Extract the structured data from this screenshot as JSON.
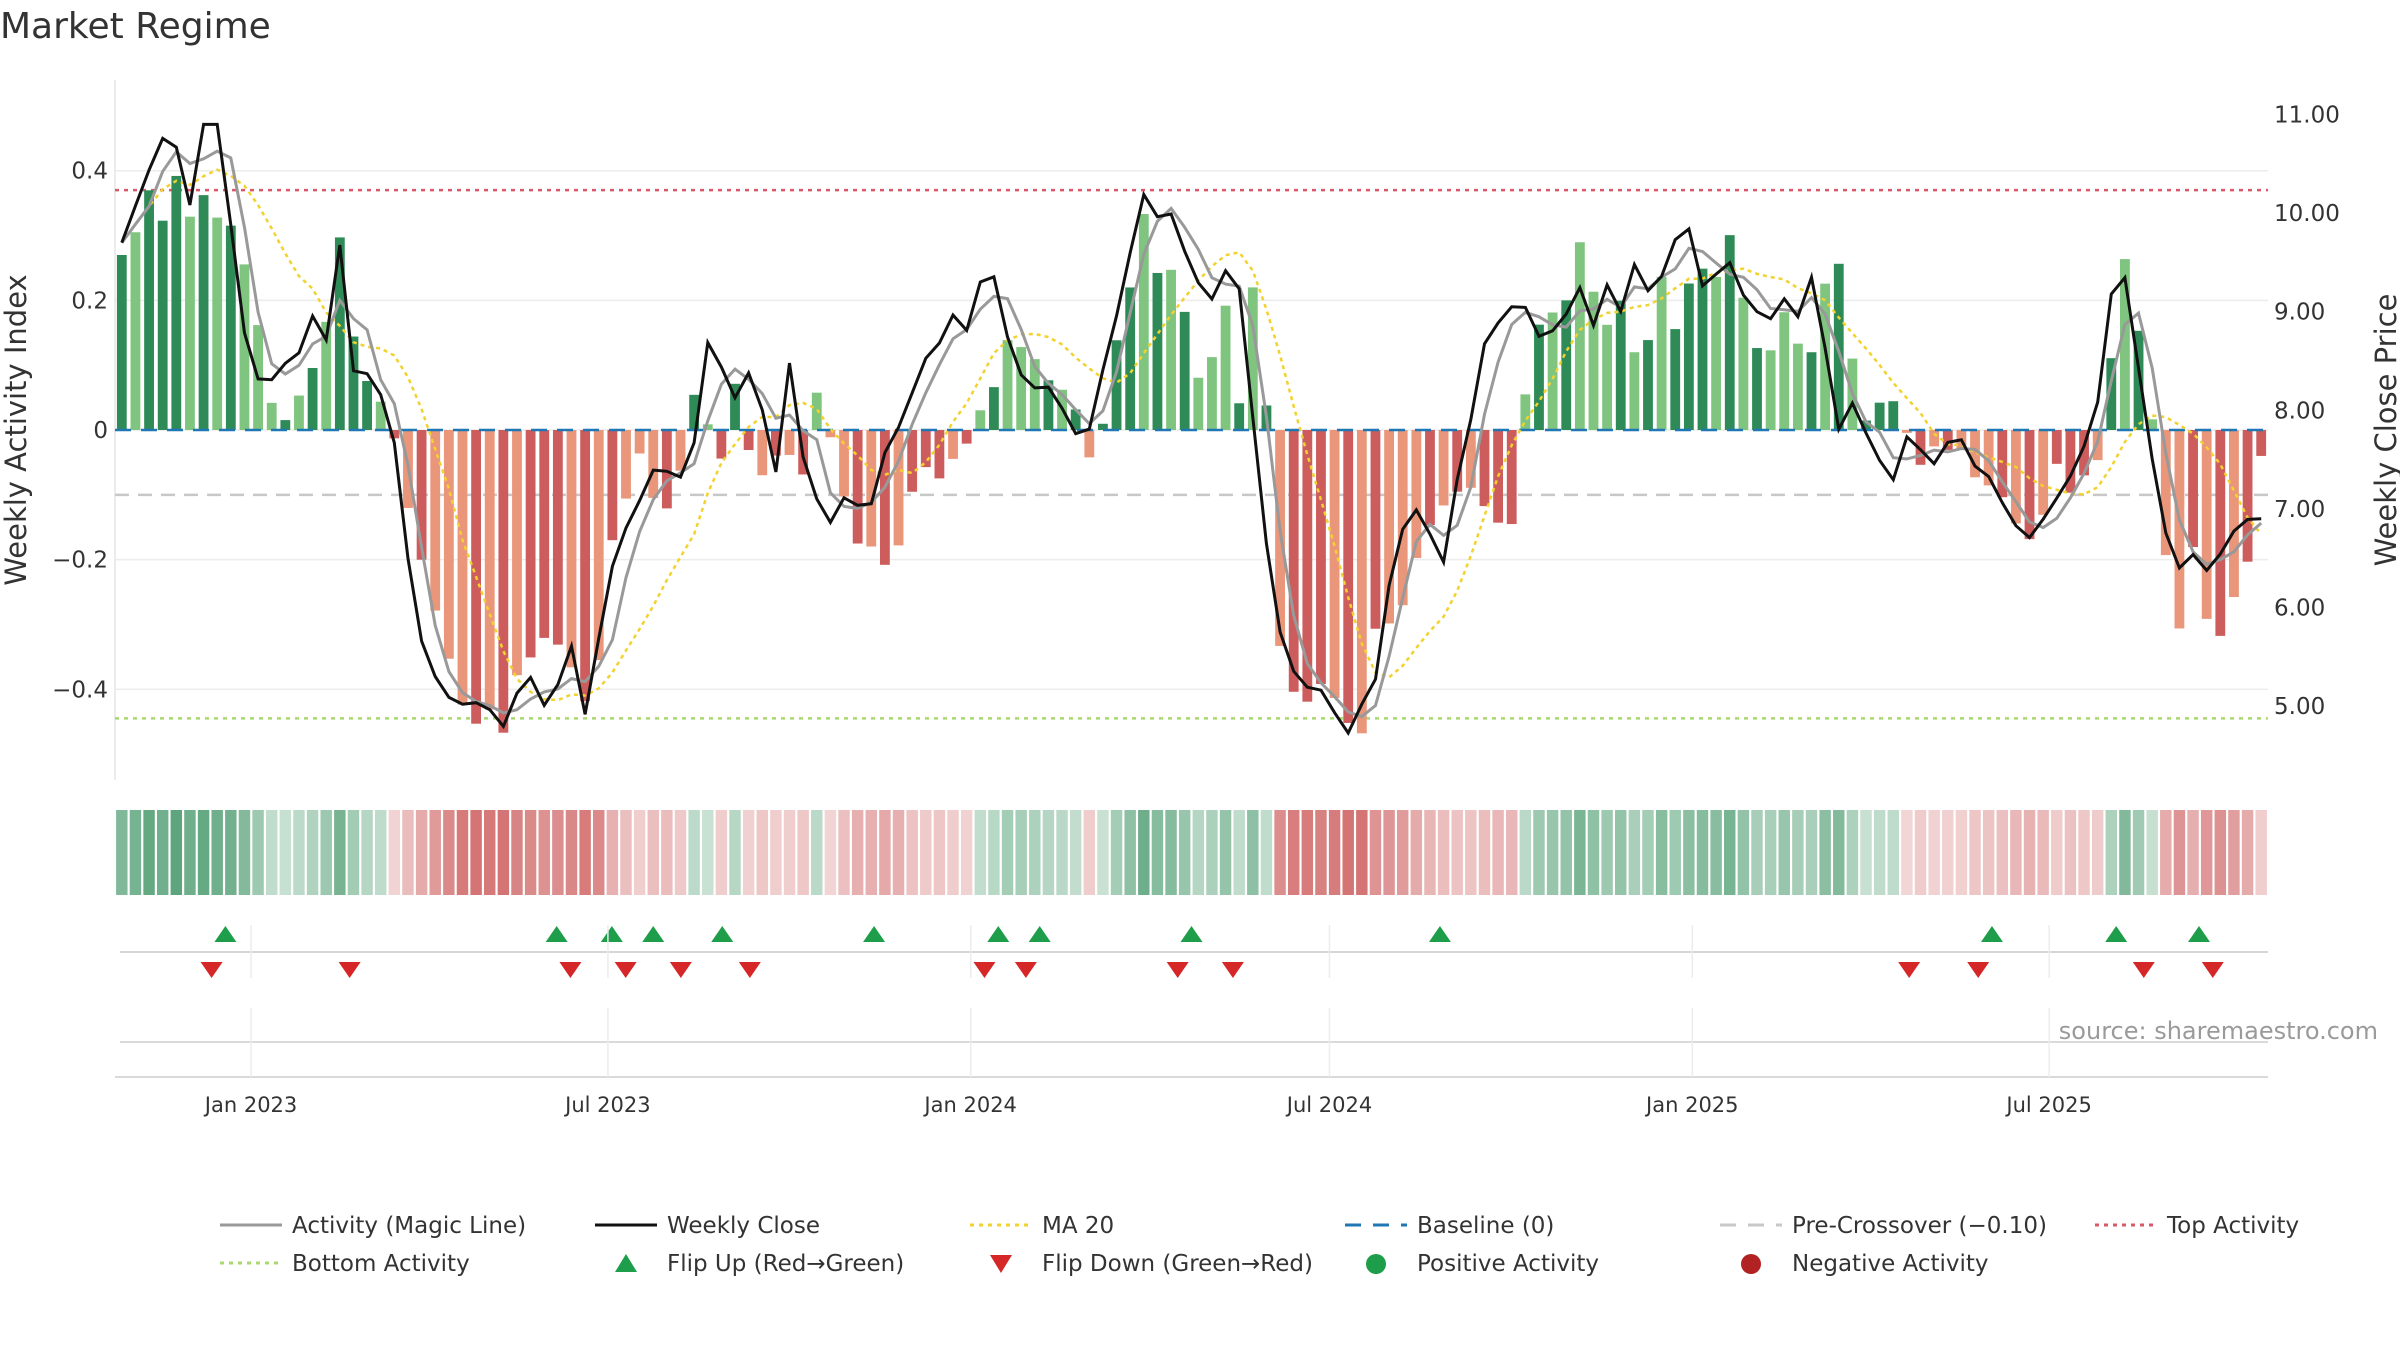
{
  "title": "Market Regime",
  "source": "source: sharemaestro.com",
  "colors": {
    "strong_green": "#2e8b57",
    "light_green": "#7fc47f",
    "strong_red": "#cd5c5c",
    "light_red": "#e9967a",
    "magic_line": "#999999",
    "weekly_close": "#111111",
    "ma20": "#f2d22e",
    "baseline": "#1f77b4",
    "pre_crossover": "#c8c8c8",
    "top_activity": "#d9596a",
    "bottom_activity": "#a8d86e",
    "flip_up": "#1e9e4a",
    "flip_down": "#d62728",
    "positive_activity": "#1e9e4a",
    "negative_activity": "#b22222"
  },
  "chart_data": {
    "type": "bar",
    "weeks_count": 158,
    "x_start": "2022-10-24",
    "x_end": "2025-10-20",
    "x_ticks": [
      "Jan 2023",
      "Jul 2023",
      "Jan 2024",
      "Jul 2024",
      "Jan 2025",
      "Jul 2025"
    ],
    "x_tick_dates": [
      "2023-01-01",
      "2023-07-01",
      "2024-01-01",
      "2024-07-01",
      "2025-01-01",
      "2025-07-01"
    ],
    "ylabel": "Weekly Activity Index",
    "y2label": "Weekly Close Price",
    "ylim": [
      -0.54,
      0.54
    ],
    "y2lim": [
      4.25,
      11.35
    ],
    "y_ticks": [
      0.4,
      0.2,
      0,
      -0.2,
      -0.4
    ],
    "y_tick_labels": [
      "0.4",
      "0.2",
      "0",
      "−0.2",
      "−0.4"
    ],
    "y2_ticks": [
      11.0,
      10.0,
      9.0,
      8.0,
      7.0,
      6.0,
      5.0
    ],
    "y2_tick_labels": [
      "11.00",
      "10.00",
      "9.00",
      "8.00",
      "7.00",
      "6.00",
      "5.00"
    ],
    "top_activity": 0.37,
    "bottom_activity": -0.445,
    "pre_crossover": -0.1,
    "baseline": 0,
    "activity_anchors": [
      [
        0,
        0.27
      ],
      [
        1,
        0.3
      ],
      [
        2,
        0.38
      ],
      [
        3,
        0.3
      ],
      [
        4,
        0.42
      ],
      [
        5,
        0.31
      ],
      [
        6,
        0.37
      ],
      [
        7,
        0.35
      ],
      [
        8,
        0.3
      ],
      [
        9,
        0.33
      ],
      [
        10,
        0.2
      ],
      [
        11,
        0.14
      ],
      [
        12,
        0.0
      ],
      [
        13,
        0.02
      ],
      [
        14,
        0.06
      ],
      [
        15,
        0.1
      ],
      [
        16,
        0.17
      ],
      [
        17,
        0.3
      ],
      [
        18,
        0.15
      ],
      [
        19,
        0.08
      ],
      [
        20,
        0.05
      ],
      [
        21,
        0.02
      ],
      [
        22,
        -0.1
      ],
      [
        23,
        -0.16
      ],
      [
        24,
        -0.26
      ],
      [
        25,
        -0.3
      ],
      [
        26,
        -0.4
      ],
      [
        27,
        -0.44
      ],
      [
        28,
        -0.46
      ],
      [
        29,
        -0.42
      ],
      [
        30,
        -0.48
      ],
      [
        31,
        -0.36
      ],
      [
        32,
        -0.35
      ],
      [
        33,
        -0.32
      ],
      [
        34,
        -0.33
      ],
      [
        35,
        -0.36
      ],
      [
        36,
        -0.42
      ],
      [
        37,
        -0.41
      ],
      [
        38,
        -0.17
      ],
      [
        39,
        -0.17
      ],
      [
        40,
        0.01
      ],
      [
        41,
        -0.1
      ],
      [
        42,
        -0.11
      ],
      [
        43,
        -0.13
      ],
      [
        44,
        -0.02
      ],
      [
        45,
        0.09
      ],
      [
        46,
        -0.02
      ],
      [
        47,
        -0.05
      ],
      [
        48,
        0.09
      ],
      [
        49,
        -0.04
      ],
      [
        50,
        -0.07
      ],
      [
        51,
        -0.04
      ],
      [
        52,
        -0.03
      ],
      [
        53,
        -0.1
      ],
      [
        54,
        0.07
      ],
      [
        55,
        0.02
      ],
      [
        56,
        -0.08
      ],
      [
        57,
        -0.14
      ],
      [
        58,
        -0.22
      ],
      [
        59,
        -0.14
      ],
      [
        60,
        -0.26
      ],
      [
        61,
        -0.13
      ],
      [
        62,
        -0.08
      ],
      [
        63,
        -0.05
      ],
      [
        64,
        -0.08
      ],
      [
        65,
        -0.04
      ],
      [
        66,
        -0.02
      ],
      [
        67,
        0.03
      ],
      [
        68,
        0.06
      ],
      [
        69,
        0.14
      ],
      [
        70,
        0.13
      ],
      [
        71,
        0.12
      ],
      [
        72,
        0.08
      ],
      [
        73,
        0.07
      ],
      [
        74,
        0.05
      ],
      [
        75,
        0.01
      ],
      [
        76,
        -0.09
      ],
      [
        77,
        0.08
      ],
      [
        78,
        0.17
      ],
      [
        79,
        0.24
      ],
      [
        80,
        0.36
      ],
      [
        81,
        0.22
      ],
      [
        82,
        0.25
      ],
      [
        83,
        0.18
      ],
      [
        84,
        0.08
      ],
      [
        85,
        0.1
      ],
      [
        86,
        0.23
      ],
      [
        87,
        -0.01
      ],
      [
        88,
        0.22
      ],
      [
        89,
        0.22
      ],
      [
        90,
        -0.3
      ],
      [
        91,
        -0.38
      ],
      [
        92,
        -0.43
      ],
      [
        93,
        -0.41
      ],
      [
        94,
        -0.38
      ],
      [
        95,
        -0.43
      ],
      [
        96,
        -0.46
      ],
      [
        97,
        -0.47
      ],
      [
        98,
        -0.28
      ],
      [
        99,
        -0.3
      ],
      [
        100,
        -0.27
      ],
      [
        101,
        -0.2
      ],
      [
        102,
        -0.15
      ],
      [
        103,
        -0.12
      ],
      [
        104,
        -0.1
      ],
      [
        105,
        -0.08
      ],
      [
        106,
        -0.11
      ],
      [
        107,
        -0.13
      ],
      [
        108,
        -0.16
      ],
      [
        109,
        -0.13
      ],
      [
        110,
        0.2
      ],
      [
        111,
        0.14
      ],
      [
        112,
        0.2
      ],
      [
        113,
        0.2
      ],
      [
        114,
        0.31
      ],
      [
        115,
        0.2
      ],
      [
        116,
        0.16
      ],
      [
        117,
        0.2
      ],
      [
        118,
        0.12
      ],
      [
        119,
        0.12
      ],
      [
        120,
        0.26
      ],
      [
        121,
        0.14
      ],
      [
        122,
        0.2
      ],
      [
        123,
        0.28
      ],
      [
        124,
        0.2
      ],
      [
        125,
        0.28
      ],
      [
        126,
        0.32
      ],
      [
        127,
        0.12
      ],
      [
        128,
        0.13
      ],
      [
        129,
        0.12
      ],
      [
        130,
        0.2
      ],
      [
        131,
        0.12
      ],
      [
        132,
        0.12
      ],
      [
        133,
        0.23
      ],
      [
        134,
        0.26
      ],
      [
        135,
        0.12
      ],
      [
        136,
        0.01
      ],
      [
        137,
        0.04
      ],
      [
        138,
        0.05
      ],
      [
        139,
        0.03
      ],
      [
        140,
        -0.07
      ],
      [
        141,
        -0.03
      ],
      [
        142,
        -0.02
      ],
      [
        143,
        -0.04
      ],
      [
        144,
        -0.02
      ],
      [
        145,
        -0.1
      ],
      [
        146,
        -0.08
      ],
      [
        147,
        -0.11
      ],
      [
        148,
        -0.15
      ],
      [
        149,
        -0.17
      ],
      [
        150,
        -0.13
      ],
      [
        151,
        -0.05
      ],
      [
        152,
        -0.1
      ],
      [
        153,
        -0.07
      ],
      [
        154,
        -0.07
      ],
      [
        155,
        0.03
      ],
      [
        156,
        0.3
      ],
      [
        157,
        0.2
      ],
      [
        158,
        0.09
      ],
      [
        159,
        -0.06
      ],
      [
        160,
        -0.3
      ],
      [
        161,
        -0.31
      ],
      [
        162,
        -0.12
      ],
      [
        163,
        -0.35
      ],
      [
        164,
        -0.31
      ],
      [
        165,
        -0.25
      ],
      [
        166,
        -0.2
      ],
      [
        167,
        -0.04
      ]
    ],
    "close_anchors": [
      [
        0,
        9.7
      ],
      [
        2,
        10.4
      ],
      [
        4,
        11.0
      ],
      [
        5,
        9.7
      ],
      [
        6,
        10.9
      ],
      [
        8,
        10.9
      ],
      [
        9,
        8.9
      ],
      [
        10,
        8.7
      ],
      [
        11,
        8.1
      ],
      [
        12,
        8.4
      ],
      [
        14,
        8.6
      ],
      [
        15,
        9.0
      ],
      [
        16,
        8.7
      ],
      [
        17,
        9.7
      ],
      [
        18,
        8.4
      ],
      [
        19,
        8.4
      ],
      [
        21,
        8.0
      ],
      [
        22,
        6.8
      ],
      [
        23,
        5.9
      ],
      [
        24,
        5.3
      ],
      [
        25,
        5.3
      ],
      [
        26,
        4.9
      ],
      [
        27,
        5.1
      ],
      [
        28,
        5.0
      ],
      [
        29,
        4.95
      ],
      [
        30,
        4.75
      ],
      [
        31,
        5.2
      ],
      [
        32,
        5.3
      ],
      [
        33,
        5.0
      ],
      [
        34,
        5.2
      ],
      [
        35,
        5.7
      ],
      [
        36,
        4.8
      ],
      [
        37,
        5.5
      ],
      [
        38,
        6.3
      ],
      [
        39,
        6.7
      ],
      [
        40,
        7.0
      ],
      [
        41,
        7.2
      ],
      [
        42,
        7.6
      ],
      [
        43,
        7.2
      ],
      [
        44,
        7.4
      ],
      [
        45,
        7.8
      ],
      [
        46,
        9.0
      ],
      [
        47,
        8.3
      ],
      [
        48,
        8.1
      ],
      [
        49,
        8.4
      ],
      [
        50,
        8.0
      ],
      [
        51,
        7.3
      ],
      [
        52,
        8.6
      ],
      [
        53,
        7.6
      ],
      [
        54,
        7.2
      ],
      [
        55,
        6.8
      ],
      [
        56,
        7.0
      ],
      [
        57,
        7.3
      ],
      [
        58,
        6.7
      ],
      [
        59,
        7.4
      ],
      [
        60,
        7.7
      ],
      [
        61,
        7.9
      ],
      [
        62,
        8.3
      ],
      [
        63,
        8.6
      ],
      [
        64,
        8.7
      ],
      [
        65,
        9.0
      ],
      [
        66,
        8.8
      ],
      [
        67,
        9.3
      ],
      [
        68,
        9.4
      ],
      [
        69,
        8.8
      ],
      [
        70,
        8.4
      ],
      [
        71,
        8.2
      ],
      [
        72,
        8.3
      ],
      [
        73,
        8.1
      ],
      [
        74,
        7.9
      ],
      [
        75,
        7.6
      ],
      [
        76,
        8.0
      ],
      [
        77,
        8.7
      ],
      [
        78,
        9.1
      ],
      [
        79,
        9.8
      ],
      [
        80,
        10.3
      ],
      [
        81,
        9.9
      ],
      [
        82,
        10.0
      ],
      [
        83,
        9.6
      ],
      [
        84,
        9.3
      ],
      [
        85,
        9.1
      ],
      [
        86,
        9.4
      ],
      [
        87,
        9.5
      ],
      [
        88,
        8.3
      ],
      [
        89,
        7.0
      ],
      [
        90,
        6.0
      ],
      [
        91,
        5.4
      ],
      [
        92,
        5.3
      ],
      [
        93,
        5.1
      ],
      [
        94,
        5.2
      ],
      [
        95,
        4.8
      ],
      [
        96,
        4.7
      ],
      [
        97,
        5.1
      ],
      [
        98,
        5.3
      ],
      [
        99,
        6.3
      ],
      [
        100,
        6.8
      ],
      [
        101,
        7.0
      ],
      [
        102,
        6.8
      ],
      [
        103,
        6.3
      ],
      [
        104,
        7.2
      ],
      [
        105,
        7.6
      ],
      [
        106,
        8.6
      ],
      [
        107,
        8.8
      ],
      [
        108,
        9.0
      ],
      [
        109,
        9.1
      ],
      [
        110,
        9.0
      ],
      [
        111,
        8.6
      ],
      [
        112,
        8.9
      ],
      [
        113,
        9.0
      ],
      [
        114,
        9.3
      ],
      [
        115,
        8.8
      ],
      [
        116,
        9.3
      ],
      [
        117,
        9.0
      ],
      [
        118,
        9.5
      ],
      [
        119,
        9.2
      ],
      [
        120,
        9.3
      ],
      [
        121,
        9.6
      ],
      [
        122,
        10.1
      ],
      [
        123,
        9.3
      ],
      [
        124,
        9.2
      ],
      [
        125,
        9.6
      ],
      [
        126,
        9.4
      ],
      [
        127,
        9.0
      ],
      [
        128,
        9.0
      ],
      [
        129,
        8.9
      ],
      [
        130,
        9.2
      ],
      [
        131,
        8.9
      ],
      [
        132,
        9.4
      ],
      [
        133,
        8.6
      ],
      [
        134,
        7.8
      ],
      [
        135,
        8.1
      ],
      [
        136,
        7.8
      ],
      [
        137,
        7.6
      ],
      [
        138,
        7.1
      ],
      [
        139,
        7.8
      ],
      [
        140,
        7.6
      ],
      [
        141,
        7.6
      ],
      [
        142,
        7.3
      ],
      [
        143,
        8.0
      ],
      [
        144,
        7.5
      ],
      [
        145,
        7.4
      ],
      [
        146,
        7.3
      ],
      [
        147,
        7.0
      ],
      [
        148,
        6.8
      ],
      [
        149,
        6.7
      ],
      [
        150,
        6.9
      ],
      [
        151,
        7.1
      ],
      [
        152,
        7.3
      ],
      [
        153,
        7.6
      ],
      [
        154,
        7.8
      ],
      [
        155,
        9.0
      ],
      [
        156,
        9.6
      ],
      [
        157,
        8.9
      ],
      [
        158,
        7.8
      ],
      [
        159,
        7.2
      ],
      [
        160,
        6.4
      ],
      [
        161,
        6.4
      ],
      [
        162,
        6.6
      ],
      [
        163,
        6.3
      ],
      [
        164,
        6.6
      ],
      [
        165,
        6.8
      ],
      [
        166,
        6.9
      ],
      [
        167,
        6.9
      ]
    ],
    "flip_up_dates": [
      "2022-12-19",
      "2023-06-05",
      "2023-07-03",
      "2023-07-24",
      "2023-08-28",
      "2023-11-13",
      "2024-01-15",
      "2024-02-05",
      "2024-04-22",
      "2024-08-26",
      "2025-06-02",
      "2025-08-04",
      "2025-09-15"
    ],
    "flip_down_dates": [
      "2022-12-12",
      "2023-02-20",
      "2023-06-12",
      "2023-07-10",
      "2023-08-07",
      "2023-09-11",
      "2024-01-08",
      "2024-01-29",
      "2024-04-15",
      "2024-05-13",
      "2025-04-21",
      "2025-05-26",
      "2025-08-18",
      "2025-09-22"
    ],
    "legend": [
      {
        "label": "Activity (Magic Line)",
        "marker": "line",
        "color": "#999999"
      },
      {
        "label": "Weekly Close",
        "marker": "line",
        "color": "#111111"
      },
      {
        "label": "MA 20",
        "marker": "dotted",
        "color": "#f2d22e"
      },
      {
        "label": "Baseline (0)",
        "marker": "dashed",
        "color": "#1f77b4"
      },
      {
        "label": "Pre-Crossover (−0.10)",
        "marker": "dashed",
        "color": "#c8c8c8"
      },
      {
        "label": "Top Activity",
        "marker": "dotted",
        "color": "#d9596a"
      },
      {
        "label": "Bottom Activity",
        "marker": "dotted",
        "color": "#a8d86e"
      },
      {
        "label": "Flip Up (Red→Green)",
        "marker": "triangle-up",
        "color": "#1e9e4a"
      },
      {
        "label": "Flip Down (Green→Red)",
        "marker": "triangle-down",
        "color": "#d62728"
      },
      {
        "label": "Positive Activity",
        "marker": "circle",
        "color": "#1e9e4a"
      },
      {
        "label": "Negative Activity",
        "marker": "circle",
        "color": "#b22222"
      }
    ],
    "legend_placement": "bottom",
    "grid": true
  }
}
